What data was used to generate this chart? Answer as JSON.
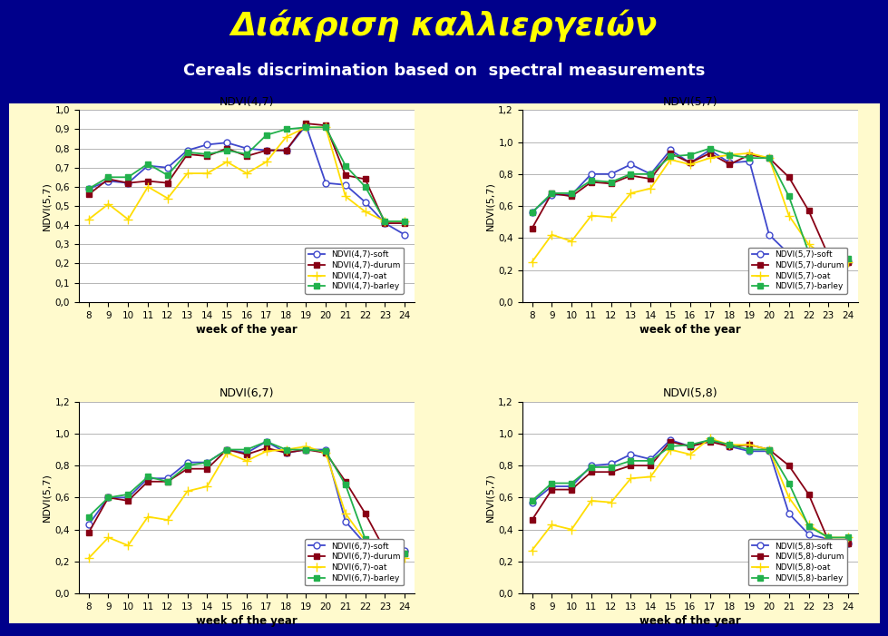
{
  "title_greek": "Διάκριση καλλιεργειών",
  "title_english": "Cereals discrimination based on  spectral measurements",
  "background_color": "#00008B",
  "panel_bg": "#FFFFF0",
  "outer_bg": "#FFFACD",
  "weeks": [
    8,
    9,
    10,
    11,
    12,
    13,
    14,
    15,
    16,
    17,
    18,
    19,
    20,
    21,
    22,
    23,
    24
  ],
  "subplots": [
    {
      "title": "NDVI(4,7)",
      "ylabel": "NDVI(5,7)",
      "ylim": [
        0.0,
        1.0
      ],
      "yticks": [
        0.0,
        0.1,
        0.2,
        0.3,
        0.4,
        0.5,
        0.6,
        0.7,
        0.8,
        0.9,
        1.0
      ],
      "series": [
        {
          "label": "NDVI(4,7)-soft",
          "color": "#3f48cc",
          "marker": "o",
          "markerfacecolor": "white",
          "values": [
            0.59,
            0.63,
            0.62,
            0.71,
            0.7,
            0.79,
            0.82,
            0.83,
            0.8,
            0.79,
            0.79,
            0.92,
            0.62,
            0.61,
            0.52,
            0.41,
            0.35
          ]
        },
        {
          "label": "NDVI(4,7)-durum",
          "color": "#880015",
          "marker": "s",
          "markerfacecolor": "#880015",
          "values": [
            0.56,
            0.64,
            0.62,
            0.63,
            0.62,
            0.77,
            0.76,
            0.8,
            0.76,
            0.79,
            0.79,
            0.93,
            0.92,
            0.66,
            0.64,
            0.41,
            0.41
          ]
        },
        {
          "label": "NDVI(4,7)-oat",
          "color": "#ffdd00",
          "marker": "+",
          "markerfacecolor": "#ffdd00",
          "values": [
            0.43,
            0.51,
            0.43,
            0.6,
            0.54,
            0.67,
            0.67,
            0.73,
            0.67,
            0.73,
            0.86,
            0.91,
            0.91,
            0.55,
            0.47,
            0.42,
            0.42
          ]
        },
        {
          "label": "NDVI(4,7)-barley",
          "color": "#22b14c",
          "marker": "s",
          "markerfacecolor": "#22b14c",
          "values": [
            0.59,
            0.65,
            0.65,
            0.72,
            0.66,
            0.78,
            0.77,
            0.79,
            0.77,
            0.87,
            0.9,
            0.91,
            0.91,
            0.71,
            0.6,
            0.42,
            0.42
          ]
        }
      ]
    },
    {
      "title": "NDVI(5,7)",
      "ylabel": "NDVI(5,7)",
      "ylim": [
        0.0,
        1.2
      ],
      "yticks": [
        0.0,
        0.2,
        0.4,
        0.6,
        0.8,
        1.0,
        1.2
      ],
      "series": [
        {
          "label": "NDVI(5,7)-soft",
          "color": "#3f48cc",
          "marker": "o",
          "markerfacecolor": "white",
          "values": [
            0.56,
            0.67,
            0.67,
            0.8,
            0.8,
            0.86,
            0.8,
            0.95,
            0.87,
            0.95,
            0.87,
            0.88,
            0.42,
            0.3,
            0.29,
            0.28,
            0.25
          ]
        },
        {
          "label": "NDVI(5,7)-durum",
          "color": "#880015",
          "marker": "s",
          "markerfacecolor": "#880015",
          "values": [
            0.46,
            0.68,
            0.66,
            0.75,
            0.74,
            0.79,
            0.77,
            0.93,
            0.87,
            0.93,
            0.86,
            0.92,
            0.9,
            0.78,
            0.57,
            0.29,
            0.25
          ]
        },
        {
          "label": "NDVI(5,7)-oat",
          "color": "#ffdd00",
          "marker": "+",
          "markerfacecolor": "#ffdd00",
          "values": [
            0.25,
            0.42,
            0.38,
            0.54,
            0.53,
            0.68,
            0.71,
            0.89,
            0.86,
            0.9,
            0.92,
            0.93,
            0.9,
            0.54,
            0.36,
            0.27,
            0.25
          ]
        },
        {
          "label": "NDVI(5,7)-barley",
          "color": "#22b14c",
          "marker": "s",
          "markerfacecolor": "#22b14c",
          "values": [
            0.56,
            0.68,
            0.68,
            0.76,
            0.75,
            0.8,
            0.8,
            0.91,
            0.92,
            0.96,
            0.92,
            0.9,
            0.9,
            0.66,
            0.31,
            0.28,
            0.27
          ]
        }
      ]
    },
    {
      "title": "NDVI(6,7)",
      "ylabel": "NDVI(5,7)",
      "ylim": [
        0.0,
        1.2
      ],
      "yticks": [
        0.0,
        0.2,
        0.4,
        0.6,
        0.8,
        1.0,
        1.2
      ],
      "series": [
        {
          "label": "NDVI(6,7)-soft",
          "color": "#3f48cc",
          "marker": "o",
          "markerfacecolor": "white",
          "values": [
            0.43,
            0.6,
            0.6,
            0.72,
            0.72,
            0.82,
            0.82,
            0.9,
            0.88,
            0.95,
            0.88,
            0.9,
            0.9,
            0.45,
            0.31,
            0.27,
            0.27
          ]
        },
        {
          "label": "NDVI(6,7)-durum",
          "color": "#880015",
          "marker": "s",
          "markerfacecolor": "#880015",
          "values": [
            0.38,
            0.6,
            0.58,
            0.7,
            0.7,
            0.78,
            0.78,
            0.9,
            0.87,
            0.91,
            0.88,
            0.9,
            0.88,
            0.7,
            0.5,
            0.27,
            0.25
          ]
        },
        {
          "label": "NDVI(6,7)-oat",
          "color": "#ffdd00",
          "marker": "+",
          "markerfacecolor": "#ffdd00",
          "values": [
            0.22,
            0.35,
            0.3,
            0.48,
            0.46,
            0.64,
            0.67,
            0.88,
            0.83,
            0.89,
            0.9,
            0.92,
            0.88,
            0.5,
            0.33,
            0.26,
            0.22
          ]
        },
        {
          "label": "NDVI(6,7)-barley",
          "color": "#22b14c",
          "marker": "s",
          "markerfacecolor": "#22b14c",
          "values": [
            0.48,
            0.6,
            0.62,
            0.73,
            0.7,
            0.8,
            0.82,
            0.9,
            0.9,
            0.95,
            0.9,
            0.9,
            0.89,
            0.68,
            0.34,
            0.25,
            0.25
          ]
        }
      ]
    },
    {
      "title": "NDVI(5,8)",
      "ylabel": "NDVI(5,7)",
      "ylim": [
        0.0,
        1.2
      ],
      "yticks": [
        0.0,
        0.2,
        0.4,
        0.6,
        0.8,
        1.0,
        1.2
      ],
      "series": [
        {
          "label": "NDVI(5,8)-soft",
          "color": "#3f48cc",
          "marker": "o",
          "markerfacecolor": "white",
          "values": [
            0.57,
            0.67,
            0.67,
            0.8,
            0.81,
            0.87,
            0.84,
            0.96,
            0.92,
            0.96,
            0.92,
            0.89,
            0.89,
            0.5,
            0.37,
            0.34,
            0.31
          ]
        },
        {
          "label": "NDVI(5,8)-durum",
          "color": "#880015",
          "marker": "s",
          "markerfacecolor": "#880015",
          "values": [
            0.46,
            0.65,
            0.65,
            0.76,
            0.76,
            0.8,
            0.8,
            0.95,
            0.92,
            0.95,
            0.92,
            0.93,
            0.9,
            0.8,
            0.62,
            0.33,
            0.31
          ]
        },
        {
          "label": "NDVI(5,8)-oat",
          "color": "#ffdd00",
          "marker": "+",
          "markerfacecolor": "#ffdd00",
          "values": [
            0.27,
            0.43,
            0.4,
            0.58,
            0.57,
            0.72,
            0.73,
            0.9,
            0.87,
            0.97,
            0.93,
            0.93,
            0.9,
            0.6,
            0.43,
            0.35,
            0.35
          ]
        },
        {
          "label": "NDVI(5,8)-barley",
          "color": "#22b14c",
          "marker": "s",
          "markerfacecolor": "#22b14c",
          "values": [
            0.58,
            0.69,
            0.69,
            0.79,
            0.79,
            0.83,
            0.83,
            0.92,
            0.93,
            0.96,
            0.93,
            0.9,
            0.9,
            0.69,
            0.42,
            0.35,
            0.35
          ]
        }
      ]
    }
  ]
}
